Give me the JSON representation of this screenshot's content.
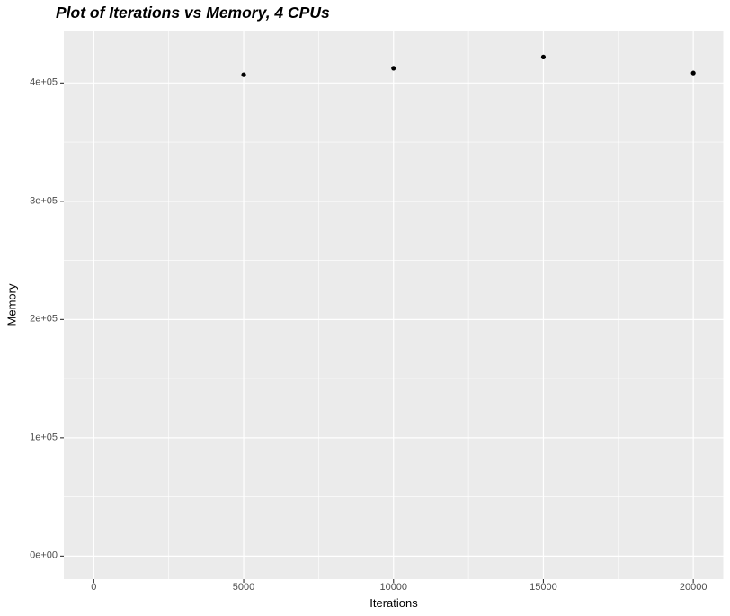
{
  "chart_data": {
    "type": "scatter",
    "title": "Plot of Iterations vs Memory, 4 CPUs",
    "xlabel": "Iterations",
    "ylabel": "Memory",
    "points": [
      {
        "x": 5000,
        "y": 407000
      },
      {
        "x": 10000,
        "y": 412500
      },
      {
        "x": 15000,
        "y": 422000
      },
      {
        "x": 20000,
        "y": 408500
      }
    ],
    "xlim": [
      -1000,
      21000
    ],
    "ylim": [
      -19500,
      443600
    ],
    "x_major_ticks": [
      0,
      5000,
      10000,
      15000,
      20000
    ],
    "x_tick_labels": [
      "0",
      "5000",
      "10000",
      "15000",
      "20000"
    ],
    "x_minor_ticks": [
      2500,
      7500,
      12500,
      17500
    ],
    "y_major_ticks": [
      0,
      100000,
      200000,
      300000,
      400000
    ],
    "y_tick_labels": [
      "0e+00",
      "1e+05",
      "2e+05",
      "3e+05",
      "4e+05"
    ],
    "y_minor_ticks": [
      50000,
      150000,
      250000,
      350000
    ],
    "grid": true,
    "legend": "none",
    "style": {
      "panel_bg": "#EBEBEB",
      "grid_color": "#FFFFFF",
      "point_color": "#000000",
      "point_radius": 2.6,
      "tick_mark_color": "#333333",
      "tick_label_color": "#4D4D4D",
      "title_color": "#000000"
    }
  }
}
